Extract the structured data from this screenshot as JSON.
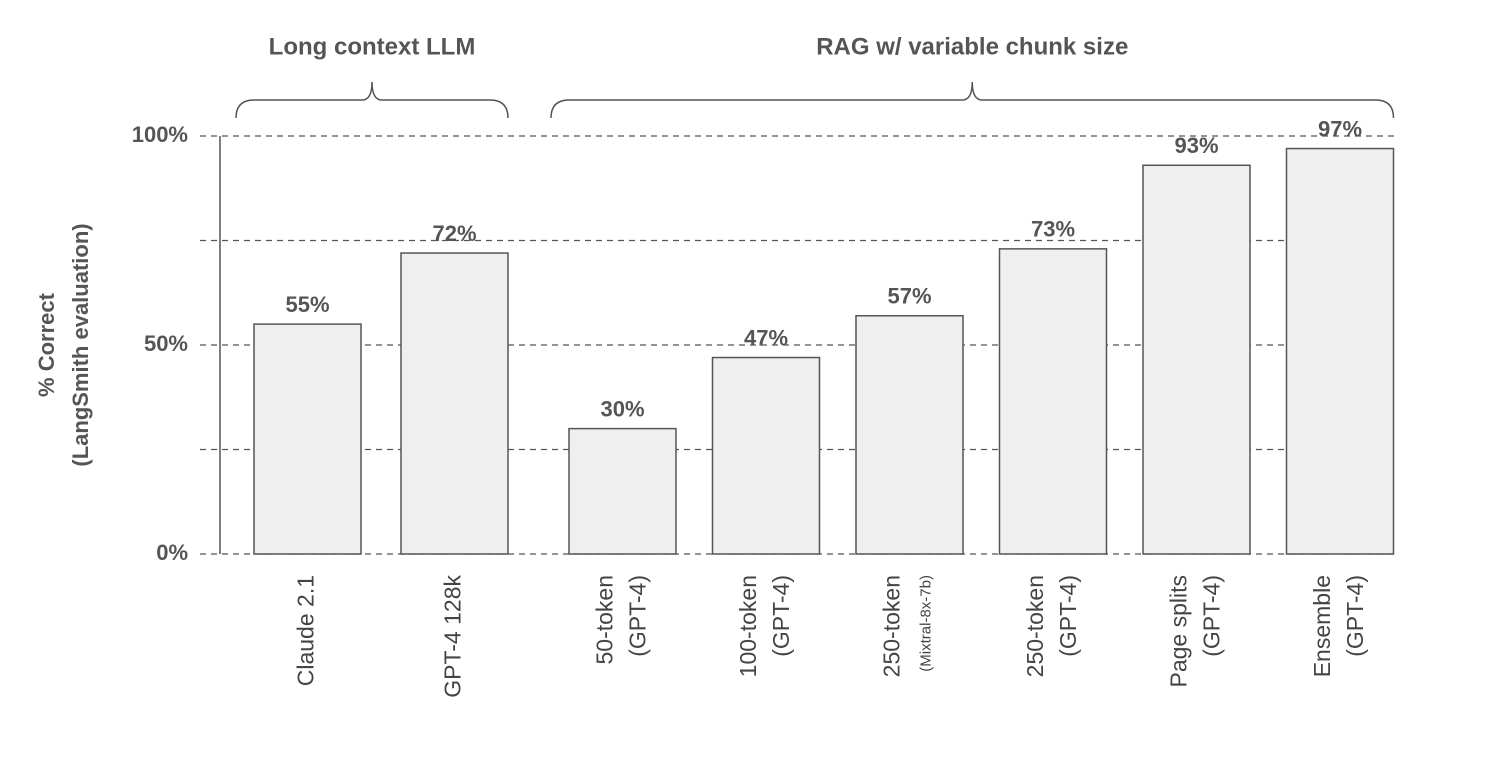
{
  "chart_data": {
    "type": "bar",
    "y_label": [
      "% Correct",
      "(LangSmith evaluation)"
    ],
    "groups": [
      {
        "label": "Long context LLM",
        "count": 2
      },
      {
        "label": "RAG w/ variable chunk size",
        "count": 6
      }
    ],
    "categories": [
      [
        "Claude 2.1"
      ],
      [
        "GPT-4 128k"
      ],
      [
        "50-token",
        "(GPT-4)"
      ],
      [
        "100-token",
        "(GPT-4)"
      ],
      [
        "250-token",
        "(Mixtral-8x-7b)"
      ],
      [
        "250-token",
        "(GPT-4)"
      ],
      [
        "Page splits",
        "(GPT-4)"
      ],
      [
        "Ensemble",
        "(GPT-4)"
      ]
    ],
    "values": [
      55,
      72,
      30,
      47,
      57,
      73,
      93,
      97
    ],
    "value_labels": [
      "55%",
      "72%",
      "30%",
      "47%",
      "57%",
      "73%",
      "93%",
      "97%"
    ],
    "color": "#efefef",
    "ylim": [
      0,
      100
    ],
    "yticks": [
      {
        "value": 0,
        "label": "0%"
      },
      {
        "value": 50,
        "label": "50%"
      },
      {
        "value": 100,
        "label": "100%"
      }
    ],
    "minor_yticks": [
      25,
      75
    ],
    "grid": true
  }
}
